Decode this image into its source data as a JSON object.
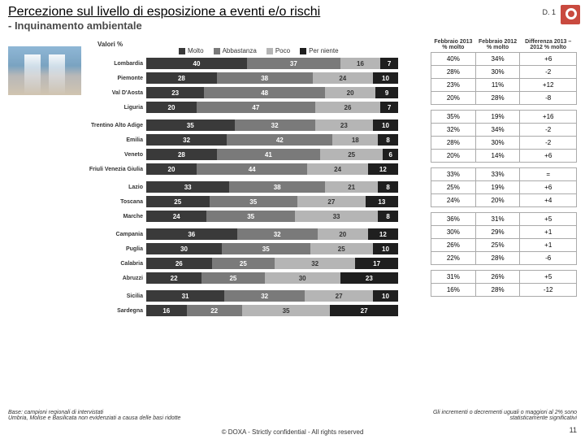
{
  "title": "Percezione sul livello di esposizione a eventi e/o rischi",
  "subtitle": "- Inquinamento ambientale",
  "pagecode": "D. 1",
  "valori_label": "Valori %",
  "legend": {
    "items": [
      {
        "label": "Molto",
        "color": "#3a3a3a"
      },
      {
        "label": "Abbastanza",
        "color": "#7a7a7a"
      },
      {
        "label": "Poco",
        "color": "#b5b5b5"
      },
      {
        "label": "Per niente",
        "color": "#1f1f1f"
      }
    ]
  },
  "chart": {
    "type": "stacked-bar",
    "colors": [
      "#3a3a3a",
      "#7a7a7a",
      "#b5b5b5",
      "#1f1f1f"
    ],
    "text_colors": [
      "#ffffff",
      "#ffffff",
      "#333333",
      "#ffffff"
    ],
    "groups": [
      {
        "rows": [
          {
            "region": "Lombardia",
            "v": [
              40,
              37,
              16,
              7
            ]
          },
          {
            "region": "Piemonte",
            "v": [
              28,
              38,
              24,
              10
            ]
          },
          {
            "region": "Val D'Aosta",
            "v": [
              23,
              48,
              20,
              9
            ]
          },
          {
            "region": "Liguria",
            "v": [
              20,
              47,
              26,
              7
            ]
          }
        ]
      },
      {
        "rows": [
          {
            "region": "Trentino Alto Adige",
            "v": [
              35,
              32,
              23,
              10
            ]
          },
          {
            "region": "Emilia",
            "v": [
              32,
              42,
              18,
              8
            ]
          },
          {
            "region": "Veneto",
            "v": [
              28,
              41,
              25,
              6
            ]
          },
          {
            "region": "Friuli Venezia Giulia",
            "v": [
              20,
              44,
              24,
              12
            ]
          }
        ]
      },
      {
        "rows": [
          {
            "region": "Lazio",
            "v": [
              33,
              38,
              21,
              8
            ]
          },
          {
            "region": "Toscana",
            "v": [
              25,
              35,
              27,
              13
            ]
          },
          {
            "region": "Marche",
            "v": [
              24,
              35,
              33,
              8
            ]
          }
        ]
      },
      {
        "rows": [
          {
            "region": "Campania",
            "v": [
              36,
              32,
              20,
              12
            ]
          },
          {
            "region": "Puglia",
            "v": [
              30,
              35,
              25,
              10
            ]
          },
          {
            "region": "Calabria",
            "v": [
              26,
              25,
              32,
              17
            ]
          },
          {
            "region": "Abruzzi",
            "v": [
              22,
              25,
              30,
              23
            ]
          }
        ]
      },
      {
        "rows": [
          {
            "region": "Sicilia",
            "v": [
              31,
              32,
              27,
              10
            ]
          },
          {
            "region": "Sardegna",
            "v": [
              16,
              22,
              35,
              27
            ]
          }
        ]
      }
    ]
  },
  "table": {
    "headers": [
      "Febbraio 2013 % molto",
      "Febbraio 2012 % molto",
      "Differenza 2013 – 2012 % molto"
    ],
    "groups": [
      [
        [
          "40%",
          "34%",
          "+6"
        ],
        [
          "28%",
          "30%",
          "-2"
        ],
        [
          "23%",
          "11%",
          "+12"
        ],
        [
          "20%",
          "28%",
          "-8"
        ]
      ],
      [
        [
          "35%",
          "19%",
          "+16"
        ],
        [
          "32%",
          "34%",
          "-2"
        ],
        [
          "28%",
          "30%",
          "-2"
        ],
        [
          "20%",
          "14%",
          "+6"
        ]
      ],
      [
        [
          "33%",
          "33%",
          "="
        ],
        [
          "25%",
          "19%",
          "+6"
        ],
        [
          "24%",
          "20%",
          "+4"
        ]
      ],
      [
        [
          "36%",
          "31%",
          "+5"
        ],
        [
          "30%",
          "29%",
          "+1"
        ],
        [
          "26%",
          "25%",
          "+1"
        ],
        [
          "22%",
          "28%",
          "-6"
        ]
      ],
      [
        [
          "31%",
          "26%",
          "+5"
        ],
        [
          "16%",
          "28%",
          "-12"
        ]
      ]
    ]
  },
  "footnote": "Base: campioni regionali di intervistati\nUmbria, Molise e Basilicata non evidenziati a causa delle basi ridotte",
  "footnote2": "Gli incrementi o decrementi uguali o maggiori al 2% sono statisticamente significativi",
  "copyright": "© DOXA - Strictly confidential - All rights reserved",
  "page_number": "11"
}
